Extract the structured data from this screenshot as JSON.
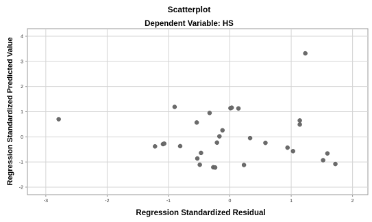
{
  "chart_data": {
    "type": "scatter",
    "title": "Scatterplot",
    "subtitle": "Dependent Variable: HS",
    "xlabel": "Regression Standardized Residual",
    "ylabel": "Regression Standardized Predicted Value",
    "xlim": [
      -3.3,
      2.25
    ],
    "ylim": [
      -2.3,
      4.3
    ],
    "xticks": [
      -3,
      -2,
      -1,
      0,
      1,
      2
    ],
    "yticks": [
      -2,
      -1,
      0,
      1,
      2,
      3,
      4
    ],
    "grid": true,
    "point_color": "#6b6b6b",
    "grid_color": "#d4d4d4",
    "points": [
      {
        "x": -2.79,
        "y": 0.7
      },
      {
        "x": -1.22,
        "y": -0.38
      },
      {
        "x": -1.09,
        "y": -0.29
      },
      {
        "x": -1.07,
        "y": -0.27
      },
      {
        "x": -0.9,
        "y": 1.19
      },
      {
        "x": -0.81,
        "y": -0.37
      },
      {
        "x": -0.54,
        "y": 0.57
      },
      {
        "x": -0.53,
        "y": -0.86
      },
      {
        "x": -0.49,
        "y": -1.11
      },
      {
        "x": -0.47,
        "y": -0.64
      },
      {
        "x": -0.33,
        "y": 0.95
      },
      {
        "x": -0.27,
        "y": -1.21
      },
      {
        "x": -0.24,
        "y": -1.22
      },
      {
        "x": -0.21,
        "y": -0.23
      },
      {
        "x": -0.17,
        "y": 0.02
      },
      {
        "x": -0.12,
        "y": 0.26
      },
      {
        "x": 0.01,
        "y": 1.14
      },
      {
        "x": 0.03,
        "y": 1.16
      },
      {
        "x": 0.14,
        "y": 1.13
      },
      {
        "x": 0.23,
        "y": -1.12
      },
      {
        "x": 0.33,
        "y": -0.05
      },
      {
        "x": 0.58,
        "y": -0.24
      },
      {
        "x": 0.94,
        "y": -0.43
      },
      {
        "x": 1.03,
        "y": -0.57
      },
      {
        "x": 1.14,
        "y": 0.65
      },
      {
        "x": 1.14,
        "y": 0.49
      },
      {
        "x": 1.23,
        "y": 3.32
      },
      {
        "x": 1.52,
        "y": -0.93
      },
      {
        "x": 1.59,
        "y": -0.66
      },
      {
        "x": 1.72,
        "y": -1.08
      }
    ]
  }
}
